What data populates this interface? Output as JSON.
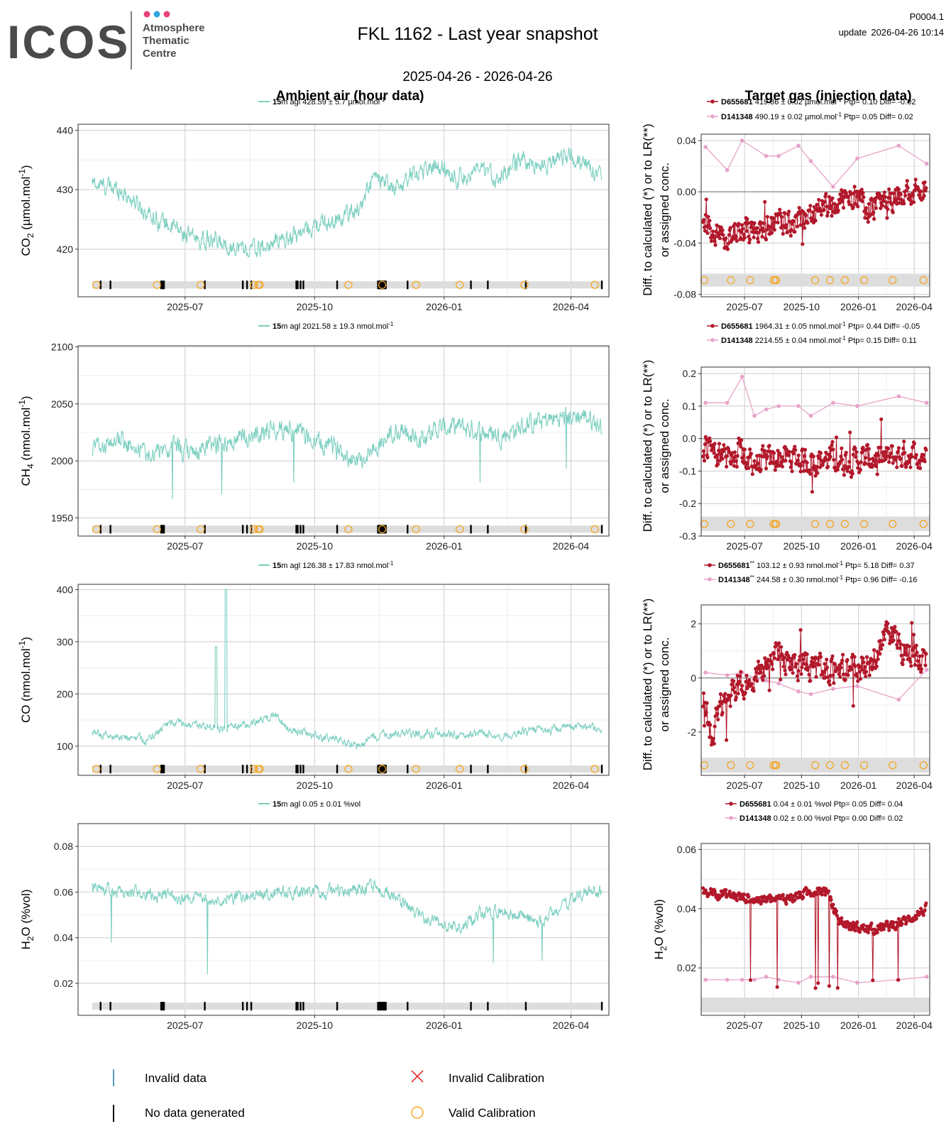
{
  "header": {
    "logo_text": "ICOS",
    "logo_sub": [
      "Atmosphere",
      "Thematic",
      "Centre"
    ],
    "title": "FKL 1162 - Last year snapshot",
    "date_range": "2025-04-26 - 2026-04-26",
    "page_id": "P0004.1",
    "update_label": "update",
    "update_time": "2026-04-26 10:14"
  },
  "section_titles": {
    "ambient": "Ambient air (hour data)",
    "target": "Target gas (injection data)"
  },
  "colors": {
    "ambient": "#7ccfc0",
    "target_dark": "#b2182b",
    "target_light": "#e7a3c9",
    "calibration": "#f5a623",
    "invalid_calibration": "#e41a1c",
    "invalid_data": "#1f78b4",
    "no_data": "#000000",
    "band": "#dddddd",
    "grid_major": "#cccccc",
    "grid_minor": "#ececec"
  },
  "time_axis": {
    "start": "2025-04-26",
    "end": "2026-04-26",
    "tick_labels": [
      "2025-07",
      "2025-10",
      "2026-01",
      "2026-04"
    ],
    "tick_days": [
      66,
      158,
      250,
      340
    ]
  },
  "status_markers": {
    "no_data_days": [
      6,
      13,
      49,
      50,
      51,
      80,
      107,
      110,
      113,
      145,
      146,
      148,
      150,
      174,
      203,
      204,
      205,
      206,
      207,
      208,
      224,
      269,
      281,
      308,
      362
    ],
    "calibration_days": [
      3,
      46,
      77,
      115,
      118,
      119,
      182,
      206,
      230,
      261,
      307,
      357
    ]
  },
  "ambient_panels": [
    {
      "id": "co2",
      "ylabel_main": "CO",
      "ylabel_sub": "2",
      "ylabel_unit": " (µmol.mol",
      "ylabel_sup": "-1",
      "ylabel_end": ")",
      "legend_height": "15",
      "legend_text": "m agl 428.59 ± 5.7 µmol.mol",
      "legend_sup": "-1",
      "ylim": [
        412,
        441
      ],
      "yticks": [
        420,
        430,
        440
      ],
      "ytick_labels": [
        "420",
        "430",
        "440"
      ],
      "band_value": 414,
      "show_calibration": true
    },
    {
      "id": "ch4",
      "ylabel_main": "CH",
      "ylabel_sub": "4",
      "ylabel_unit": " (nmol.mol",
      "ylabel_sup": "-1",
      "ylabel_end": ")",
      "legend_height": "15",
      "legend_text": "m agl 2021.58 ± 19.3 nmol.mol",
      "legend_sup": "-1",
      "ylim": [
        1934,
        2101
      ],
      "yticks": [
        1950,
        2000,
        2050,
        2100
      ],
      "ytick_labels": [
        "1950",
        "2000",
        "2050",
        "2100"
      ],
      "band_value": 1940,
      "show_calibration": true
    },
    {
      "id": "co",
      "ylabel_main": "CO (nmol.mol",
      "ylabel_sub": "",
      "ylabel_unit": "",
      "ylabel_sup": "-1",
      "ylabel_end": ")",
      "legend_height": "15",
      "legend_text": "m agl 126.38 ± 17.83 nmol.mol",
      "legend_sup": "-1",
      "ylim": [
        44,
        410
      ],
      "yticks": [
        100,
        200,
        300,
        400
      ],
      "ytick_labels": [
        "100",
        "200",
        "300",
        "400"
      ],
      "band_value": 56,
      "show_calibration": true
    },
    {
      "id": "h2o",
      "ylabel_main": "H",
      "ylabel_sub": "2",
      "ylabel_unit": "O (%vol)",
      "ylabel_sup": "",
      "ylabel_end": "",
      "legend_height": "15",
      "legend_text": "m agl 0.05 ± 0.01 %vol",
      "legend_sup": "",
      "ylim": [
        0.006,
        0.09
      ],
      "yticks": [
        0.02,
        0.04,
        0.06,
        0.08
      ],
      "ytick_labels": [
        "0.02",
        "0.04",
        "0.06",
        "0.08"
      ],
      "band_value": 0.01,
      "show_calibration": false
    }
  ],
  "target_panels": [
    {
      "id": "co2",
      "ylabel": [
        "Diff. to calculated (*) or to LR(**)",
        "or assigned conc."
      ],
      "ylim": [
        -0.082,
        0.045
      ],
      "yticks": [
        -0.08,
        -0.04,
        0.0,
        0.04
      ],
      "ytick_labels": [
        "-0.08",
        "-0.04",
        "0.00",
        "0.04"
      ],
      "band": [
        -0.074,
        -0.064
      ],
      "zero_line": true,
      "show_calibration": true,
      "legend": [
        {
          "name": "D655681",
          "mark": "",
          "text": " 419.86 ± 0.02 µmol.mol",
          "sup": "-1",
          "stats": " Ptp= 0.10 Diff= -0.02"
        },
        {
          "name": "D141348",
          "mark": "",
          "text": " 490.19 ± 0.02 µmol.mol",
          "sup": "-1",
          "stats": " Ptp= 0.05 Diff= 0.02"
        }
      ],
      "light_series": {
        "days": [
          5,
          40,
          64,
          103,
          123,
          155,
          175,
          211,
          250,
          317,
          362
        ],
        "values": [
          0.035,
          0.017,
          0.04,
          0.028,
          0.028,
          0.036,
          0.024,
          0.004,
          0.026,
          0.036,
          0.022
        ]
      }
    },
    {
      "id": "ch4",
      "ylabel": [
        "Diff. to calculated (*) or to LR(**)",
        "or assigned conc."
      ],
      "ylim": [
        -0.3,
        0.22
      ],
      "yticks": [
        -0.3,
        -0.2,
        -0.1,
        0.0,
        0.1,
        0.2
      ],
      "ytick_labels": [
        "-0.3",
        "-0.2",
        "-0.1",
        "0.0",
        "0.1",
        "0.2"
      ],
      "band": [
        -0.285,
        -0.24
      ],
      "zero_line": true,
      "show_calibration": true,
      "legend": [
        {
          "name": "D655681",
          "mark": "",
          "text": " 1964.31 ± 0.05 nmol.mol",
          "sup": "-1",
          "stats": " Ptp= 0.44 Diff= -0.05"
        },
        {
          "name": "D141348",
          "mark": "",
          "text": " 2214.55 ± 0.04 nmol.mol",
          "sup": "-1",
          "stats": " Ptp= 0.15 Diff= 0.11"
        }
      ],
      "light_series": {
        "days": [
          5,
          40,
          64,
          84,
          103,
          123,
          155,
          175,
          211,
          250,
          317,
          362
        ],
        "values": [
          0.11,
          0.11,
          0.19,
          0.07,
          0.09,
          0.1,
          0.1,
          0.07,
          0.11,
          0.1,
          0.13,
          0.11
        ]
      }
    },
    {
      "id": "co",
      "ylabel": [
        "Diff. to calculated (*) or to LR(**)",
        "or assigned conc."
      ],
      "ylim": [
        -3.6,
        2.7
      ],
      "yticks": [
        -2,
        0,
        2
      ],
      "ytick_labels": [
        "-2",
        "0",
        "2"
      ],
      "band": [
        -3.5,
        -2.95
      ],
      "zero_line": true,
      "show_calibration": true,
      "legend": [
        {
          "name": "D655681",
          "mark": "**",
          "text": " 103.12 ± 0.93 nmol.mol",
          "sup": "-1",
          "stats": " Ptp= 5.18 Diff= 0.37"
        },
        {
          "name": "D141348",
          "mark": "**",
          "text": " 244.58 ± 0.30 nmol.mol",
          "sup": "-1",
          "stats": " Ptp= 0.96 Diff= -0.16"
        }
      ],
      "light_series": {
        "days": [
          5,
          40,
          64,
          84,
          103,
          123,
          155,
          175,
          211,
          250,
          317,
          362
        ],
        "values": [
          0.2,
          0.1,
          0.2,
          0.0,
          -0.1,
          -0.2,
          -0.5,
          -0.6,
          -0.4,
          -0.3,
          -0.8,
          0.3
        ]
      }
    },
    {
      "id": "h2o",
      "ylabel": [
        "H2O (%vol)"
      ],
      "ylabel_main": "H",
      "ylabel_sub": "2",
      "ylabel_unit": "O (%vol)",
      "ylim": [
        0.004,
        0.062
      ],
      "yticks": [
        0.02,
        0.04,
        0.06
      ],
      "ytick_labels": [
        "0.02",
        "0.04",
        "0.06"
      ],
      "band": [
        0.005,
        0.01
      ],
      "zero_line": false,
      "show_calibration": false,
      "legend": [
        {
          "name": "D655681",
          "mark": "",
          "text": " 0.04 ± 0.01 %vol",
          "sup": "",
          "stats": " Ptp= 0.05 Diff= 0.04"
        },
        {
          "name": "D141348",
          "mark": "",
          "text": " 0.02 ± 0.00 %vol",
          "sup": "",
          "stats": " Ptp= 0.00 Diff= 0.02"
        }
      ],
      "light_series": {
        "days": [
          5,
          40,
          64,
          84,
          103,
          123,
          155,
          175,
          211,
          250,
          317,
          362
        ],
        "values": [
          0.016,
          0.016,
          0.016,
          0.016,
          0.017,
          0.016,
          0.015,
          0.017,
          0.017,
          0.015,
          0.016,
          0.017
        ]
      }
    }
  ],
  "chart_data": [
    {
      "type": "line",
      "title": "Ambient air (hour data) - CO2",
      "xlabel": "",
      "ylabel": "CO2 (µmol.mol-1)",
      "ylim": [
        412,
        441
      ],
      "x_range": [
        "2025-04-26",
        "2026-04-26"
      ],
      "series": [
        {
          "name": "15m agl",
          "mean": 428.59,
          "sd": 5.7,
          "x_days": [
            0,
            20,
            40,
            55,
            70,
            90,
            110,
            120,
            130,
            140,
            150,
            160,
            175,
            190,
            200,
            215,
            230,
            245,
            260,
            275,
            290,
            305,
            320,
            335,
            350,
            362
          ],
          "values": [
            431,
            430,
            426,
            424,
            422,
            421,
            420,
            420,
            421,
            422,
            423,
            424,
            425,
            427,
            432,
            430,
            433,
            434,
            432,
            433,
            432,
            435,
            434,
            436,
            434,
            433
          ]
        }
      ]
    },
    {
      "type": "line",
      "title": "Ambient air (hour data) - CH4",
      "xlabel": "",
      "ylabel": "CH4 (nmol.mol-1)",
      "ylim": [
        1934,
        2101
      ],
      "x_range": [
        "2025-04-26",
        "2026-04-26"
      ],
      "series": [
        {
          "name": "15m agl",
          "mean": 2021.58,
          "sd": 19.3,
          "x_days": [
            0,
            20,
            40,
            55,
            70,
            90,
            110,
            120,
            130,
            140,
            150,
            160,
            175,
            190,
            200,
            215,
            230,
            245,
            260,
            275,
            290,
            305,
            320,
            335,
            350,
            362
          ],
          "values": [
            2010,
            2018,
            2005,
            2012,
            2006,
            2015,
            2020,
            2025,
            2030,
            2028,
            2022,
            2015,
            2010,
            2000,
            2012,
            2025,
            2020,
            2028,
            2030,
            2026,
            2022,
            2030,
            2035,
            2038,
            2040,
            2030
          ]
        }
      ]
    },
    {
      "type": "line",
      "title": "Ambient air (hour data) - CO",
      "xlabel": "",
      "ylabel": "CO (nmol.mol-1)",
      "ylim": [
        44,
        410
      ],
      "x_range": [
        "2025-04-26",
        "2026-04-26"
      ],
      "series": [
        {
          "name": "15m agl",
          "mean": 126.38,
          "sd": 17.83,
          "x_days": [
            0,
            20,
            40,
            55,
            70,
            90,
            110,
            120,
            130,
            140,
            150,
            160,
            175,
            190,
            200,
            215,
            230,
            245,
            260,
            275,
            290,
            305,
            320,
            335,
            350,
            362
          ],
          "values": [
            125,
            118,
            112,
            145,
            140,
            135,
            140,
            148,
            160,
            130,
            125,
            118,
            112,
            100,
            118,
            125,
            122,
            125,
            120,
            125,
            120,
            128,
            130,
            135,
            140,
            130
          ]
        }
      ]
    },
    {
      "type": "line",
      "title": "Ambient air (hour data) - H2O",
      "xlabel": "",
      "ylabel": "H2O (%vol)",
      "ylim": [
        0.006,
        0.09
      ],
      "x_range": [
        "2025-04-26",
        "2026-04-26"
      ],
      "series": [
        {
          "name": "15m agl",
          "mean": 0.05,
          "sd": 0.01,
          "x_days": [
            0,
            20,
            40,
            55,
            70,
            90,
            110,
            120,
            130,
            140,
            150,
            160,
            175,
            190,
            200,
            215,
            230,
            245,
            260,
            275,
            290,
            305,
            320,
            335,
            350,
            362
          ],
          "values": [
            0.063,
            0.06,
            0.059,
            0.058,
            0.057,
            0.057,
            0.058,
            0.059,
            0.06,
            0.06,
            0.06,
            0.06,
            0.061,
            0.061,
            0.062,
            0.058,
            0.05,
            0.047,
            0.044,
            0.05,
            0.052,
            0.05,
            0.046,
            0.055,
            0.06,
            0.06
          ]
        }
      ]
    },
    {
      "type": "scatter",
      "title": "Target gas (injection data) - CO2",
      "ylabel": "Diff. to calculated (*) or to LR(**) or assigned conc.",
      "ylim": [
        -0.082,
        0.045
      ],
      "series": [
        {
          "name": "D655681",
          "mean": 419.86,
          "sd": 0.02,
          "Ptp": 0.1,
          "Diff": -0.02,
          "x_days": [
            0,
            30,
            60,
            90,
            120,
            150,
            180,
            210,
            240,
            270,
            300,
            330,
            362
          ],
          "values": [
            -0.02,
            -0.035,
            -0.03,
            -0.028,
            -0.025,
            -0.022,
            -0.015,
            -0.01,
            -0.005,
            -0.012,
            -0.005,
            0.0,
            0.005
          ]
        },
        {
          "name": "D141348",
          "mean": 490.19,
          "sd": 0.02,
          "Ptp": 0.05,
          "Diff": 0.02
        }
      ]
    },
    {
      "type": "scatter",
      "title": "Target gas (injection data) - CH4",
      "ylabel": "Diff. to calculated (*) or to LR(**) or assigned conc.",
      "ylim": [
        -0.3,
        0.22
      ],
      "series": [
        {
          "name": "D655681",
          "mean": 1964.31,
          "sd": 0.05,
          "Ptp": 0.44,
          "Diff": -0.05,
          "x_days": [
            0,
            30,
            60,
            90,
            120,
            150,
            180,
            210,
            240,
            270,
            300,
            330,
            362
          ],
          "values": [
            -0.03,
            -0.05,
            -0.04,
            -0.08,
            -0.06,
            -0.06,
            -0.07,
            -0.06,
            -0.07,
            -0.06,
            -0.06,
            -0.05,
            -0.05
          ]
        },
        {
          "name": "D141348",
          "mean": 2214.55,
          "sd": 0.04,
          "Ptp": 0.15,
          "Diff": 0.11
        }
      ]
    },
    {
      "type": "scatter",
      "title": "Target gas (injection data) - CO",
      "ylabel": "Diff. to calculated (*) or to LR(**) or assigned conc.",
      "ylim": [
        -3.6,
        2.7
      ],
      "series": [
        {
          "name": "D655681",
          "mean": 103.12,
          "sd": 0.93,
          "Ptp": 5.18,
          "Diff": 0.37,
          "x_days": [
            0,
            15,
            30,
            60,
            90,
            120,
            150,
            180,
            210,
            240,
            270,
            300,
            330,
            362
          ],
          "values": [
            -0.5,
            -2.2,
            -1.0,
            -0.3,
            0.3,
            0.8,
            0.5,
            0.4,
            0.3,
            0.4,
            0.5,
            1.6,
            0.9,
            0.6
          ]
        },
        {
          "name": "D141348",
          "mean": 244.58,
          "sd": 0.3,
          "Ptp": 0.96,
          "Diff": -0.16
        }
      ]
    },
    {
      "type": "scatter",
      "title": "Target gas (injection data) - H2O",
      "ylabel": "H2O (%vol)",
      "ylim": [
        0.004,
        0.062
      ],
      "series": [
        {
          "name": "D655681",
          "mean": 0.04,
          "sd": 0.01,
          "Ptp": 0.05,
          "Diff": 0.04,
          "x_days": [
            0,
            30,
            60,
            90,
            120,
            150,
            180,
            200,
            220,
            240,
            270,
            300,
            330,
            362
          ],
          "values": [
            0.046,
            0.045,
            0.044,
            0.043,
            0.043,
            0.044,
            0.046,
            0.046,
            0.036,
            0.034,
            0.033,
            0.034,
            0.036,
            0.04
          ]
        },
        {
          "name": "D141348",
          "mean": 0.02,
          "sd": 0.0,
          "Ptp": 0.0,
          "Diff": 0.02
        }
      ]
    }
  ],
  "bottom_legend": {
    "invalid_data": "Invalid data",
    "no_data": "No data generated",
    "invalid_calibration": "Invalid Calibration",
    "valid_calibration": "Valid Calibration"
  }
}
